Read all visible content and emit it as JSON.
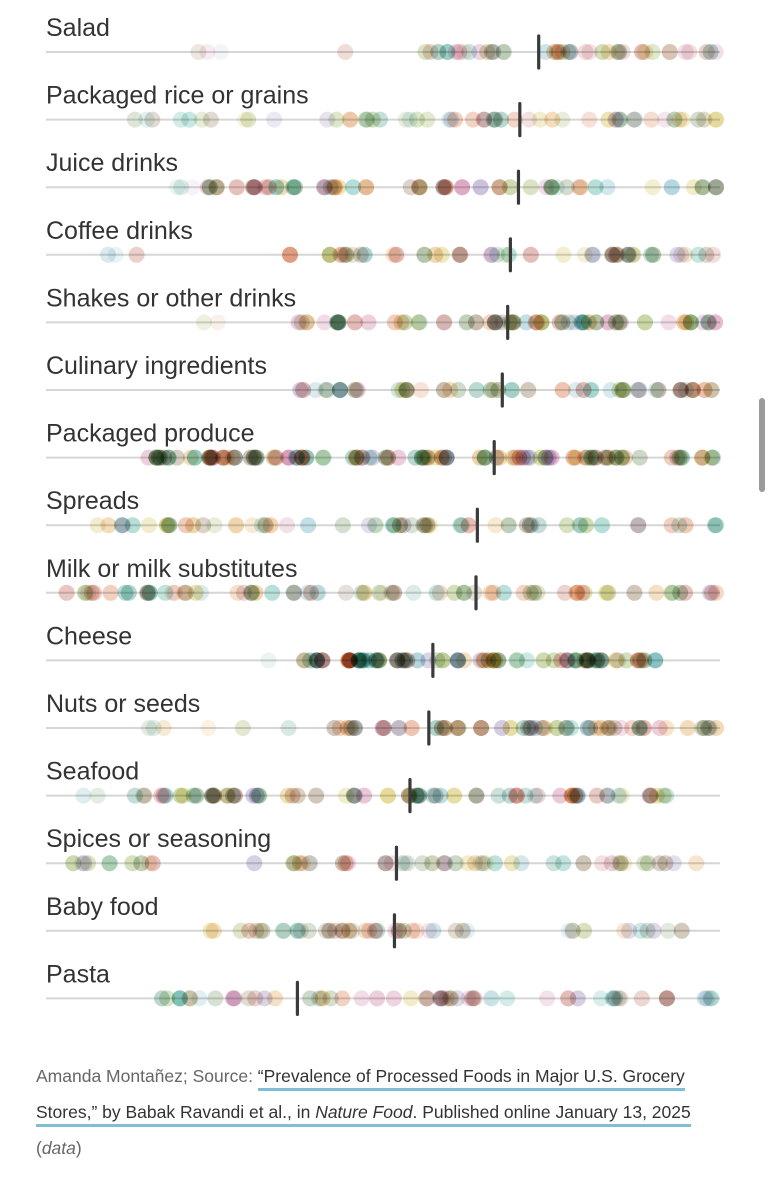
{
  "chart_data": {
    "type": "scatter",
    "x_domain": [
      0,
      100
    ],
    "categories": [
      "Salad",
      "Packaged rice or grains",
      "Juice drinks",
      "Coffee drinks",
      "Shakes or other drinks",
      "Culinary ingredients",
      "Packaged produce",
      "Spreads",
      "Milk or milk substitutes",
      "Cheese",
      "Nuts or seeds",
      "Seafood",
      "Spices or seasoning",
      "Baby food",
      "Pasta"
    ],
    "medians": [
      73.1,
      70.3,
      70.1,
      68.9,
      68.5,
      67.7,
      66.5,
      64.0,
      63.8,
      57.4,
      56.8,
      54.0,
      52.0,
      51.7,
      37.3
    ],
    "groups": [
      {
        "name": "Salad",
        "ranges": [
          [
            22,
            30,
            3,
            0.14
          ],
          [
            44,
            45,
            1,
            0.18
          ],
          [
            56,
            100,
            42,
            0.3
          ]
        ]
      },
      {
        "name": "Packaged rice or grains",
        "ranges": [
          [
            13,
            36,
            10,
            0.2
          ],
          [
            40,
            100,
            45,
            0.28
          ]
        ]
      },
      {
        "name": "Juice drinks",
        "ranges": [
          [
            18,
            24,
            3,
            0.14
          ],
          [
            24,
            100,
            55,
            0.38
          ]
        ]
      },
      {
        "name": "Coffee drinks",
        "ranges": [
          [
            3,
            14,
            3,
            0.22
          ],
          [
            36,
            100,
            48,
            0.32
          ]
        ]
      },
      {
        "name": "Shakes or other drinks",
        "ranges": [
          [
            22,
            26,
            2,
            0.14
          ],
          [
            37,
            100,
            58,
            0.38
          ]
        ]
      },
      {
        "name": "Culinary ingredients",
        "ranges": [
          [
            37,
            100,
            48,
            0.34
          ]
        ]
      },
      {
        "name": "Packaged produce",
        "ranges": [
          [
            15,
            100,
            110,
            0.42
          ]
        ]
      },
      {
        "name": "Spreads",
        "ranges": [
          [
            7,
            100,
            60,
            0.3
          ]
        ]
      },
      {
        "name": "Milk or milk substitutes",
        "ranges": [
          [
            3,
            100,
            72,
            0.3
          ]
        ]
      },
      {
        "name": "Cheese",
        "ranges": [
          [
            32,
            34,
            1,
            0.14
          ],
          [
            38,
            91,
            80,
            0.4
          ]
        ]
      },
      {
        "name": "Nuts or seeds",
        "ranges": [
          [
            15,
            38,
            6,
            0.2
          ],
          [
            42,
            100,
            60,
            0.34
          ]
        ]
      },
      {
        "name": "Seafood",
        "ranges": [
          [
            5,
            10,
            3,
            0.16
          ],
          [
            13,
            94,
            70,
            0.38
          ]
        ]
      },
      {
        "name": "Spices or seasoning",
        "ranges": [
          [
            3,
            46,
            20,
            0.32
          ],
          [
            50,
            98,
            35,
            0.28
          ]
        ]
      },
      {
        "name": "Baby food",
        "ranges": [
          [
            23,
            69,
            40,
            0.24
          ],
          [
            77,
            95,
            10,
            0.24
          ]
        ]
      },
      {
        "name": "Pasta",
        "ranges": [
          [
            14,
            100,
            58,
            0.3
          ]
        ]
      }
    ],
    "palette": [
      "#1a9a85",
      "#d98a1c",
      "#d4632d",
      "#b54a3a",
      "#7f9e2c",
      "#c96b98",
      "#8f7bb4",
      "#c9b227",
      "#56a7b8",
      "#3f6e2a",
      "#6b4a20",
      "#2f8a70"
    ]
  },
  "credit": {
    "prefix": "Amanda Montañez; Source: ",
    "link_title": "“Prevalence of Processed Foods in Major U.S. Grocery Stores,”",
    "link_authors": " by Babak Ravandi et al., in ",
    "journal": "Nature Food",
    "link_published": ". Published online January 13, 2025",
    "open_paren": " (",
    "data_label": "data",
    "close_paren": ")"
  }
}
